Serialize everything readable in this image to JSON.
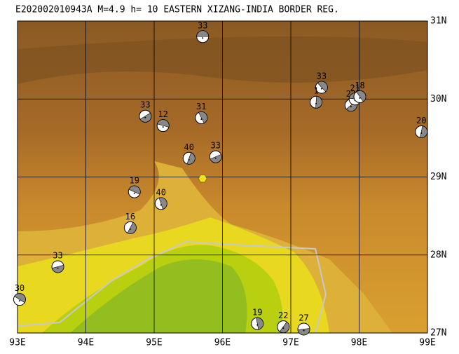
{
  "map": {
    "title": "E202002010943A M=4.9 h= 10 EASTERN XIZANG-INDIA BORDER REG.",
    "lonlim": [
      93,
      99
    ],
    "latlim": [
      27,
      31
    ],
    "lon_ticks": [
      {
        "value": 93,
        "label": "93E"
      },
      {
        "value": 94,
        "label": "94E"
      },
      {
        "value": 95,
        "label": "95E"
      },
      {
        "value": 96,
        "label": "96E"
      },
      {
        "value": 97,
        "label": "97E"
      },
      {
        "value": 98,
        "label": "98E"
      },
      {
        "value": 99,
        "label": "99E"
      }
    ],
    "lat_ticks": [
      {
        "value": 27,
        "label": "27N"
      },
      {
        "value": 28,
        "label": "28N"
      },
      {
        "value": 29,
        "label": "29N"
      },
      {
        "value": 30,
        "label": "30N"
      },
      {
        "value": 31,
        "label": "31N"
      }
    ],
    "epicenter": {
      "lon": 95.71,
      "lat": 28.98
    },
    "events": [
      {
        "label": "33",
        "lon": 95.71,
        "lat": 30.8
      },
      {
        "label": "33",
        "lon": 97.45,
        "lat": 30.15
      },
      {
        "label": "1",
        "lon": 97.37,
        "lat": 29.96
      },
      {
        "label": "22",
        "lon": 97.88,
        "lat": 29.92
      },
      {
        "label": "21",
        "lon": 97.94,
        "lat": 30.0
      },
      {
        "label": "18",
        "lon": 98.01,
        "lat": 30.03
      },
      {
        "label": "20",
        "lon": 98.91,
        "lat": 29.58
      },
      {
        "label": "33",
        "lon": 94.87,
        "lat": 29.78
      },
      {
        "label": "12",
        "lon": 95.13,
        "lat": 29.66
      },
      {
        "label": "31",
        "lon": 95.69,
        "lat": 29.76
      },
      {
        "label": "40",
        "lon": 95.51,
        "lat": 29.24
      },
      {
        "label": "33",
        "lon": 95.9,
        "lat": 29.26
      },
      {
        "label": "19",
        "lon": 94.71,
        "lat": 28.81
      },
      {
        "label": "40",
        "lon": 95.1,
        "lat": 28.66
      },
      {
        "label": "16",
        "lon": 94.65,
        "lat": 28.35
      },
      {
        "label": "33",
        "lon": 93.59,
        "lat": 27.85
      },
      {
        "label": "30",
        "lon": 93.03,
        "lat": 27.43
      },
      {
        "label": "19",
        "lon": 96.51,
        "lat": 27.12
      },
      {
        "label": "22",
        "lon": 96.89,
        "lat": 27.08
      },
      {
        "label": "27",
        "lon": 97.19,
        "lat": 27.05
      }
    ]
  }
}
